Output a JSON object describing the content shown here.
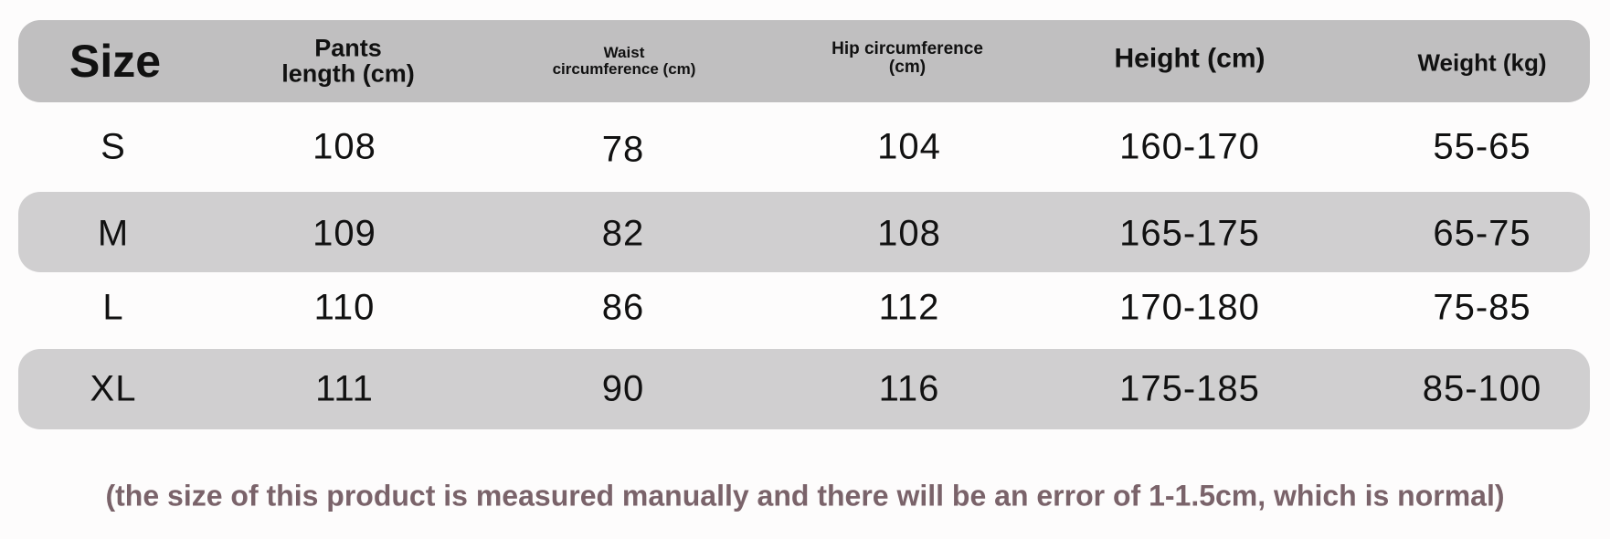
{
  "headers": [
    "Size",
    "Pants length (cm)",
    "Waist circumference (cm)",
    "Hip circumference (cm)",
    "Height (cm)",
    "Weight (kg)"
  ],
  "header_lines": {
    "pants": [
      "Pants",
      "length (cm)"
    ],
    "waist": [
      "Waist",
      "circumference (cm)"
    ],
    "hip": [
      "Hip circumference",
      "(cm)"
    ]
  },
  "rows": [
    [
      "S",
      "108",
      "78",
      "104",
      "160-170",
      "55-65"
    ],
    [
      "M",
      "109",
      "82",
      "108",
      "165-175",
      "65-75"
    ],
    [
      "L",
      "110",
      "86",
      "112",
      "170-180",
      "75-85"
    ],
    [
      "XL",
      "111",
      "90",
      "116",
      "175-185",
      "85-100"
    ]
  ],
  "note": "(the size of this product is measured manually and there will be an error of 1-1.5cm, which is normal)",
  "colors": {
    "header_band": "#c0bfc0",
    "row_band": "#d0cfd0",
    "note_text": "#7a636a"
  }
}
